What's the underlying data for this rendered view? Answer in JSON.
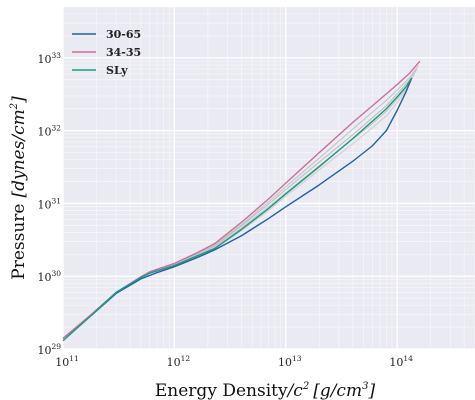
{
  "chart_data": {
    "type": "line",
    "xlabel": "Energy Density/c² [g/cm³]",
    "ylabel": "Pressure [dynes/cm²]",
    "xlabel_parts": {
      "main": "Energy Density",
      "unit_var": "/c",
      "unit_exp": "2",
      "bracket": "[g/cm",
      "bracket_exp": "3",
      "close": "]"
    },
    "ylabel_parts": {
      "main": "Pressure",
      "bracket": "[dynes/cm",
      "bracket_exp": "2",
      "close": "]"
    },
    "x_scale": "log",
    "y_scale": "log",
    "xlim": [
      100000000000.0,
      500000000000000.0
    ],
    "ylim": [
      1e+29,
      5e+33
    ],
    "grid": true,
    "legend_position": "top-left",
    "x_ticks": [
      {
        "base": "10",
        "exp": "11",
        "value": 100000000000.0
      },
      {
        "base": "10",
        "exp": "12",
        "value": 1000000000000.0
      },
      {
        "base": "10",
        "exp": "13",
        "value": 10000000000000.0
      },
      {
        "base": "10",
        "exp": "14",
        "value": 100000000000000.0
      }
    ],
    "y_ticks": [
      {
        "base": "10",
        "exp": "29",
        "value": 1e+29
      },
      {
        "base": "10",
        "exp": "30",
        "value": 1e+30
      },
      {
        "base": "10",
        "exp": "31",
        "value": 1e+31
      },
      {
        "base": "10",
        "exp": "32",
        "value": 1e+32
      },
      {
        "base": "10",
        "exp": "33",
        "value": 1e+33
      }
    ],
    "series": [
      {
        "name": "30-65",
        "color": "#1f5fa8",
        "x": [
          100000000000.0,
          180000000000.0,
          300000000000.0,
          500000000000.0,
          700000000000.0,
          1000000000000.0,
          1600000000000.0,
          2300000000000.0,
          4000000000000.0,
          7000000000000.0,
          10000000000000.0,
          20000000000000.0,
          40000000000000.0,
          60000000000000.0,
          80000000000000.0,
          100000000000000.0,
          120000000000000.0,
          135000000000000.0
        ],
        "y": [
          1.4e+29,
          2.9e+29,
          5.8e+29,
          9.2e+29,
          1.12e+30,
          1.35e+30,
          1.8e+30,
          2.3e+30,
          3.6e+30,
          6.2e+30,
          9e+30,
          1.8e+31,
          3.8e+31,
          6.2e+31,
          1e+32,
          1.9e+32,
          3.4e+32,
          5.3e+32
        ]
      },
      {
        "name": "34-35",
        "color": "#cc6f9f",
        "x": [
          100000000000.0,
          180000000000.0,
          300000000000.0,
          500000000000.0,
          600000000000.0,
          1000000000000.0,
          1600000000000.0,
          2300000000000.0,
          4000000000000.0,
          7000000000000.0,
          10000000000000.0,
          20000000000000.0,
          40000000000000.0,
          60000000000000.0,
          80000000000000.0,
          100000000000000.0,
          130000000000000.0,
          160000000000000.0
        ],
        "y": [
          1.4e+29,
          3e+29,
          6e+29,
          9.8e+29,
          1.15e+30,
          1.5e+30,
          2.1e+30,
          2.8e+30,
          5.5e+30,
          1.15e+31,
          1.9e+31,
          5e+31,
          1.3e+32,
          2.2e+32,
          3.2e+32,
          4.3e+32,
          6.2e+32,
          9e+32
        ]
      },
      {
        "name": "SLy",
        "color": "#1a9a82",
        "x": [
          100000000000.0,
          180000000000.0,
          300000000000.0,
          500000000000.0,
          600000000000.0,
          1000000000000.0,
          1600000000000.0,
          2300000000000.0,
          4000000000000.0,
          7000000000000.0,
          10000000000000.0,
          20000000000000.0,
          40000000000000.0,
          60000000000000.0,
          80000000000000.0,
          100000000000000.0,
          120000000000000.0,
          135000000000000.0
        ],
        "y": [
          1.3e+29,
          2.9e+29,
          6e+29,
          9.6e+29,
          1.1e+30,
          1.4e+30,
          1.9e+30,
          2.4e+30,
          4.4e+30,
          8.5e+30,
          1.35e+31,
          3.2e+31,
          7.8e+31,
          1.35e+32,
          2e+32,
          2.9e+32,
          4e+32,
          5.3e+32
        ]
      },
      {
        "color": "#bfbfbf",
        "x": [
          100000000000.0,
          180000000000.0,
          300000000000.0,
          500000000000.0,
          600000000000.0,
          1000000000000.0,
          1600000000000.0,
          2300000000000.0,
          4000000000000.0,
          7000000000000.0,
          10000000000000.0,
          20000000000000.0,
          40000000000000.0,
          60000000000000.0,
          80000000000000.0,
          100000000000000.0,
          130000000000000.0,
          150000000000000.0
        ],
        "y": [
          1.4e+29,
          3e+29,
          6e+29,
          9.6e+29,
          1.12e+30,
          1.45e+30,
          2e+30,
          2.6e+30,
          4.9e+30,
          9.8e+30,
          1.55e+31,
          3.7e+31,
          8.8e+31,
          1.5e+32,
          2.2e+32,
          3.2e+32,
          5e+32,
          7e+32
        ]
      },
      {
        "color": "#c8c8c8",
        "x": [
          100000000000.0,
          180000000000.0,
          300000000000.0,
          500000000000.0,
          600000000000.0,
          1000000000000.0,
          1600000000000.0,
          2300000000000.0,
          4000000000000.0,
          7000000000000.0,
          10000000000000.0,
          20000000000000.0,
          40000000000000.0,
          60000000000000.0,
          80000000000000.0,
          100000000000000.0,
          130000000000000.0,
          145000000000000.0
        ],
        "y": [
          1.4e+29,
          3e+29,
          6e+29,
          9.5e+29,
          1.1e+30,
          1.4e+30,
          1.95e+30,
          2.5e+30,
          4.6e+30,
          9e+30,
          1.4e+31,
          3.3e+31,
          7.6e+31,
          1.25e+32,
          1.85e+32,
          2.7e+32,
          4.5e+32,
          6.4e+32
        ]
      },
      {
        "color": "#d0d0d0",
        "x": [
          100000000000.0,
          180000000000.0,
          300000000000.0,
          500000000000.0,
          600000000000.0,
          1000000000000.0,
          1600000000000.0,
          2300000000000.0,
          4000000000000.0,
          7000000000000.0,
          10000000000000.0,
          20000000000000.0,
          40000000000000.0,
          60000000000000.0,
          80000000000000.0,
          100000000000000.0,
          125000000000000.0,
          140000000000000.0
        ],
        "y": [
          1.4e+29,
          3e+29,
          6e+29,
          9.4e+29,
          1.1e+30,
          1.38e+30,
          1.88e+30,
          2.4e+30,
          4.2e+30,
          8e+30,
          1.25e+31,
          2.9e+31,
          6.6e+31,
          1.1e+32,
          1.6e+32,
          2.4e+32,
          4e+32,
          5.8e+32
        ]
      },
      {
        "color": "#c4c4c4",
        "x": [
          100000000000.0,
          180000000000.0,
          300000000000.0,
          500000000000.0,
          600000000000.0,
          1000000000000.0,
          1600000000000.0,
          2300000000000.0,
          4000000000000.0,
          7000000000000.0,
          10000000000000.0,
          20000000000000.0,
          40000000000000.0,
          60000000000000.0,
          80000000000000.0,
          100000000000000.0,
          130000000000000.0,
          155000000000000.0
        ],
        "y": [
          1.4e+29,
          3e+29,
          6e+29,
          9.7e+29,
          1.13e+30,
          1.48e+30,
          2.05e+30,
          2.7e+30,
          5.1e+30,
          1.05e+31,
          1.7e+31,
          4.2e+31,
          1.05e+32,
          1.8e+32,
          2.6e+32,
          3.6e+32,
          5.4e+32,
          7.8e+32
        ]
      }
    ],
    "legend": [
      {
        "label": "30-65",
        "color": "#1f5fa8"
      },
      {
        "label": "34-35",
        "color": "#cc6f9f"
      },
      {
        "label": "SLy",
        "color": "#1a9a82"
      }
    ]
  }
}
